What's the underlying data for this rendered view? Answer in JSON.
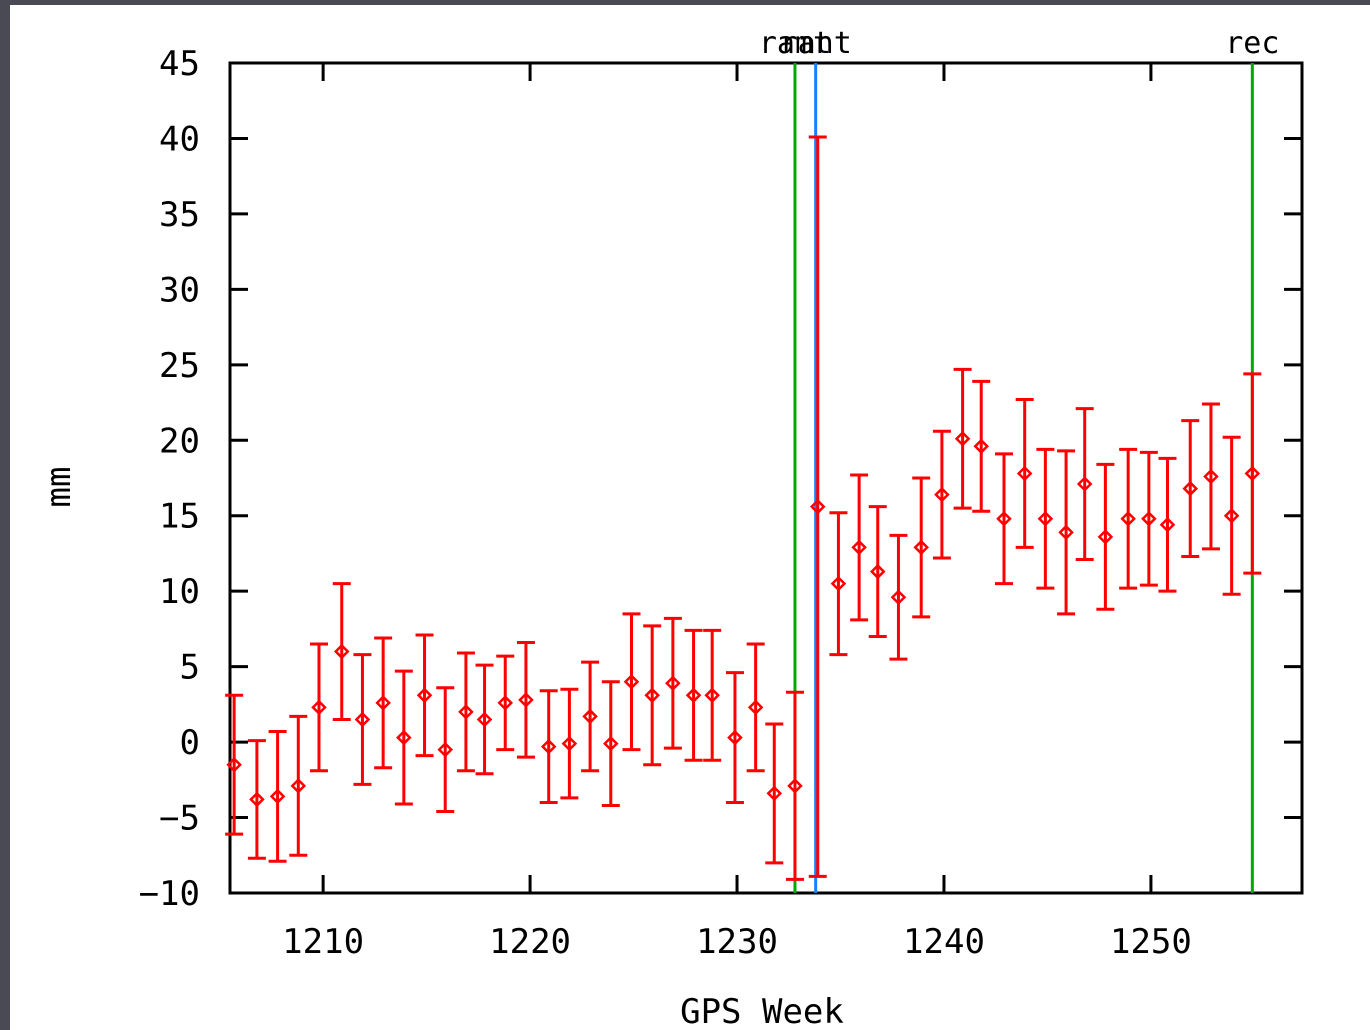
{
  "chart_data": {
    "type": "scatter",
    "title": "",
    "xlabel": "GPS Week",
    "ylabel": "mm",
    "xlim": [
      1205.5,
      1257.3
    ],
    "ylim": [
      -10,
      45
    ],
    "x_ticks": [
      1210,
      1220,
      1230,
      1240,
      1250
    ],
    "y_ticks": [
      -10,
      -5,
      0,
      5,
      10,
      15,
      20,
      25,
      30,
      35,
      40,
      45
    ],
    "grid": false,
    "marker_color": "#ff0000",
    "series": [
      {
        "points": [
          {
            "x": 1205.7,
            "y": -1.5,
            "err": 4.6
          },
          {
            "x": 1206.8,
            "y": -3.8,
            "err": 3.9
          },
          {
            "x": 1207.8,
            "y": -3.6,
            "err": 4.3
          },
          {
            "x": 1208.8,
            "y": -2.9,
            "err": 4.6
          },
          {
            "x": 1209.8,
            "y": 2.3,
            "err": 4.2
          },
          {
            "x": 1210.9,
            "y": 6.0,
            "err": 4.5
          },
          {
            "x": 1211.9,
            "y": 1.5,
            "err": 4.3
          },
          {
            "x": 1212.9,
            "y": 2.6,
            "err": 4.3
          },
          {
            "x": 1213.9,
            "y": 0.3,
            "err": 4.4
          },
          {
            "x": 1214.9,
            "y": 3.1,
            "err": 4.0
          },
          {
            "x": 1215.9,
            "y": -0.5,
            "err": 4.1
          },
          {
            "x": 1216.9,
            "y": 2.0,
            "err": 3.9
          },
          {
            "x": 1217.8,
            "y": 1.5,
            "err": 3.6
          },
          {
            "x": 1218.8,
            "y": 2.6,
            "err": 3.1
          },
          {
            "x": 1219.8,
            "y": 2.8,
            "err": 3.8
          },
          {
            "x": 1220.9,
            "y": -0.3,
            "err": 3.7
          },
          {
            "x": 1221.9,
            "y": -0.1,
            "err": 3.6
          },
          {
            "x": 1222.9,
            "y": 1.7,
            "err": 3.6
          },
          {
            "x": 1223.9,
            "y": -0.1,
            "err": 4.1
          },
          {
            "x": 1224.9,
            "y": 4.0,
            "err": 4.5
          },
          {
            "x": 1225.9,
            "y": 3.1,
            "err": 4.6
          },
          {
            "x": 1226.9,
            "y": 3.9,
            "err": 4.3
          },
          {
            "x": 1227.9,
            "y": 3.1,
            "err": 4.3
          },
          {
            "x": 1228.8,
            "y": 3.1,
            "err": 4.3
          },
          {
            "x": 1229.9,
            "y": 0.3,
            "err": 4.3
          },
          {
            "x": 1230.9,
            "y": 2.3,
            "err": 4.2
          },
          {
            "x": 1231.8,
            "y": -3.4,
            "err": 4.6
          },
          {
            "x": 1232.8,
            "y": -2.9,
            "err": 6.2
          },
          {
            "x": 1233.9,
            "y": 15.6,
            "err": 24.5
          },
          {
            "x": 1234.9,
            "y": 10.5,
            "err": 4.7
          },
          {
            "x": 1235.9,
            "y": 12.9,
            "err": 4.8
          },
          {
            "x": 1236.8,
            "y": 11.3,
            "err": 4.3
          },
          {
            "x": 1237.8,
            "y": 9.6,
            "err": 4.1
          },
          {
            "x": 1238.9,
            "y": 12.9,
            "err": 4.6
          },
          {
            "x": 1239.9,
            "y": 16.4,
            "err": 4.2
          },
          {
            "x": 1240.9,
            "y": 20.1,
            "err": 4.6
          },
          {
            "x": 1241.8,
            "y": 19.6,
            "err": 4.3
          },
          {
            "x": 1242.9,
            "y": 14.8,
            "err": 4.3
          },
          {
            "x": 1243.9,
            "y": 17.8,
            "err": 4.9
          },
          {
            "x": 1244.9,
            "y": 14.8,
            "err": 4.6
          },
          {
            "x": 1245.9,
            "y": 13.9,
            "err": 5.4
          },
          {
            "x": 1246.8,
            "y": 17.1,
            "err": 5.0
          },
          {
            "x": 1247.8,
            "y": 13.6,
            "err": 4.8
          },
          {
            "x": 1248.9,
            "y": 14.8,
            "err": 4.6
          },
          {
            "x": 1249.9,
            "y": 14.8,
            "err": 4.4
          },
          {
            "x": 1250.8,
            "y": 14.4,
            "err": 4.4
          },
          {
            "x": 1251.9,
            "y": 16.8,
            "err": 4.5
          },
          {
            "x": 1252.9,
            "y": 17.6,
            "err": 4.8
          },
          {
            "x": 1253.9,
            "y": 15.0,
            "err": 5.2
          },
          {
            "x": 1254.9,
            "y": 17.8,
            "err": 6.6
          }
        ]
      }
    ],
    "annotations": [
      {
        "x": 1232.8,
        "label": "ramt",
        "color": "#00aa00"
      },
      {
        "x": 1233.8,
        "label": "rant",
        "color": "#1a80ff"
      },
      {
        "x": 1254.9,
        "label": "rec",
        "color": "#00aa00"
      }
    ]
  }
}
